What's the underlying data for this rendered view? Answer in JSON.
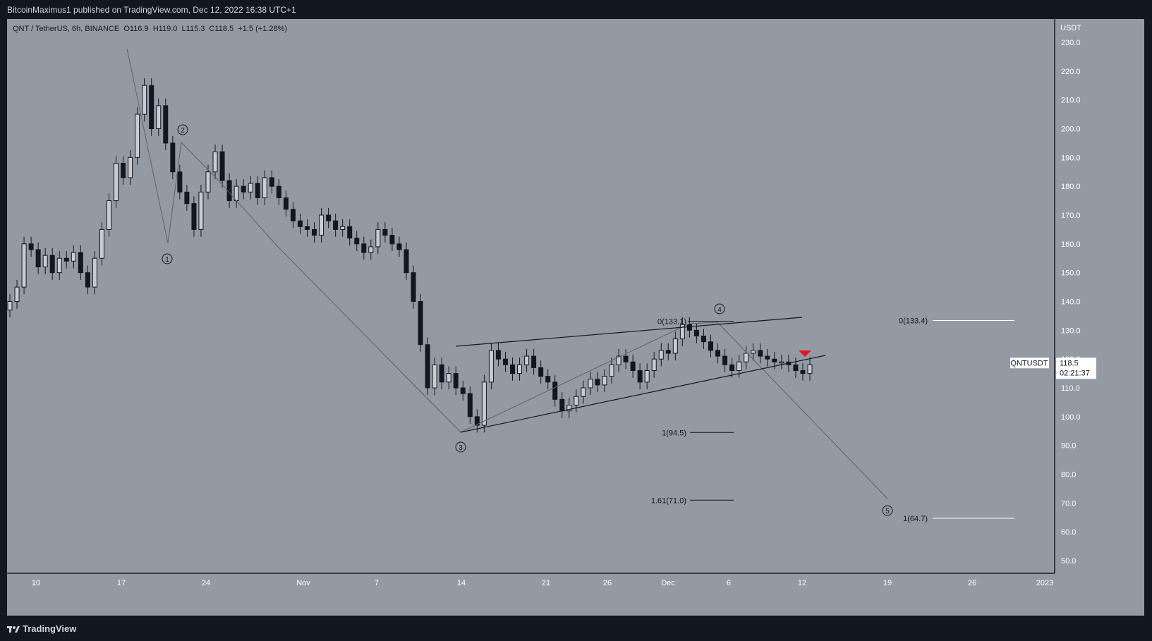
{
  "header": {
    "publisher_line": "BitcoinMaximus1 published on TradingView.com, Dec 12, 2022 16:38 UTC+1"
  },
  "legend": {
    "symbol": "QNT / TetherUS, 6h, BINANCE",
    "o_label": "O",
    "o_value": "116.9",
    "h_label": "H",
    "h_value": "119.0",
    "l_label": "L",
    "l_value": "115.3",
    "c_label": "C",
    "c_value": "118.5",
    "change": "+1.5 (+1.28%)"
  },
  "footer": {
    "brand": "TradingView"
  },
  "colors": {
    "background": "#131722",
    "panel": "#949aa4",
    "candle": "#131722",
    "line": "#131722",
    "white": "#ffffff",
    "arrow": "#e8151b"
  },
  "chart_data": {
    "type": "candlestick",
    "y_axis": {
      "unit_label": "USDT",
      "ticks": [
        50.0,
        60.0,
        70.0,
        80.0,
        90.0,
        100.0,
        110.0,
        120.0,
        130.0,
        140.0,
        150.0,
        160.0,
        170.0,
        180.0,
        190.0,
        200.0,
        210.0,
        220.0,
        230.0
      ],
      "ylim": [
        50,
        230
      ]
    },
    "x_axis": {
      "ticks": [
        "10",
        "17",
        "24",
        "Nov",
        "7",
        "14",
        "21",
        "26",
        "Dec",
        "6",
        "12",
        "19",
        "26",
        "2023"
      ]
    },
    "price_label": {
      "symbol": "QNTUSDT",
      "price": "118.5",
      "countdown": "02:21:37"
    },
    "candles_approx": [
      [
        137,
        140
      ],
      [
        140,
        145
      ],
      [
        145,
        160
      ],
      [
        160,
        158
      ],
      [
        158,
        152
      ],
      [
        152,
        156
      ],
      [
        156,
        150
      ],
      [
        150,
        155
      ],
      [
        155,
        154
      ],
      [
        154,
        157
      ],
      [
        157,
        150
      ],
      [
        150,
        145
      ],
      [
        145,
        155
      ],
      [
        155,
        165
      ],
      [
        165,
        175
      ],
      [
        175,
        188
      ],
      [
        188,
        183
      ],
      [
        183,
        190
      ],
      [
        190,
        205
      ],
      [
        205,
        215
      ],
      [
        215,
        200
      ],
      [
        200,
        208
      ],
      [
        208,
        195
      ],
      [
        195,
        185
      ],
      [
        185,
        178
      ],
      [
        178,
        174
      ],
      [
        174,
        165
      ],
      [
        165,
        178
      ],
      [
        178,
        185
      ],
      [
        185,
        192
      ],
      [
        192,
        182
      ],
      [
        182,
        175
      ],
      [
        175,
        180
      ],
      [
        180,
        178
      ],
      [
        178,
        181
      ],
      [
        181,
        176
      ],
      [
        176,
        183
      ],
      [
        183,
        180
      ],
      [
        180,
        176
      ],
      [
        176,
        172
      ],
      [
        172,
        168
      ],
      [
        168,
        166
      ],
      [
        166,
        165
      ],
      [
        165,
        163
      ],
      [
        163,
        170
      ],
      [
        170,
        168
      ],
      [
        168,
        165
      ],
      [
        165,
        166
      ],
      [
        166,
        162
      ],
      [
        162,
        160
      ],
      [
        160,
        157
      ],
      [
        157,
        159
      ],
      [
        159,
        165
      ],
      [
        165,
        163
      ],
      [
        163,
        160
      ],
      [
        160,
        158
      ],
      [
        158,
        150
      ],
      [
        150,
        140
      ],
      [
        140,
        125
      ],
      [
        125,
        110
      ],
      [
        110,
        118
      ],
      [
        118,
        112
      ],
      [
        112,
        115
      ],
      [
        115,
        110
      ],
      [
        110,
        108
      ],
      [
        108,
        100
      ],
      [
        100,
        97
      ],
      [
        97,
        112
      ],
      [
        112,
        123
      ],
      [
        123,
        120
      ],
      [
        120,
        118
      ],
      [
        118,
        115
      ],
      [
        115,
        118
      ],
      [
        118,
        121
      ],
      [
        121,
        117
      ],
      [
        117,
        114
      ],
      [
        114,
        112
      ],
      [
        112,
        106
      ],
      [
        106,
        102
      ],
      [
        102,
        104
      ],
      [
        104,
        107
      ],
      [
        107,
        110
      ],
      [
        110,
        113
      ],
      [
        113,
        111
      ],
      [
        111,
        114
      ],
      [
        114,
        118
      ],
      [
        118,
        121
      ],
      [
        121,
        119
      ],
      [
        119,
        116
      ],
      [
        116,
        112
      ],
      [
        112,
        116
      ],
      [
        116,
        120
      ],
      [
        120,
        123
      ],
      [
        123,
        122
      ],
      [
        122,
        127
      ],
      [
        127,
        132
      ],
      [
        132,
        130
      ],
      [
        130,
        128
      ],
      [
        128,
        126
      ],
      [
        126,
        123
      ],
      [
        123,
        121
      ],
      [
        121,
        118
      ],
      [
        118,
        116
      ],
      [
        116,
        119
      ],
      [
        119,
        122
      ],
      [
        122,
        123
      ],
      [
        123,
        121
      ],
      [
        121,
        120
      ],
      [
        120,
        119
      ],
      [
        119,
        119
      ],
      [
        119,
        118
      ],
      [
        118,
        116
      ],
      [
        116,
        115
      ],
      [
        115,
        118
      ]
    ],
    "wave_labels": [
      {
        "label": "1",
        "value": 152
      },
      {
        "label": "2",
        "value": 200
      },
      {
        "label": "3",
        "value": 90
      },
      {
        "label": "4",
        "value": 137
      },
      {
        "label": "5",
        "value": 67
      }
    ],
    "fib_levels": [
      {
        "label": "0(133.1)",
        "value": 133.1
      },
      {
        "label": "1(94.5)",
        "value": 94.5
      },
      {
        "label": "1.61(71.0)",
        "value": 71.0
      },
      {
        "label": "0(133.4)",
        "value": 133.4
      },
      {
        "label": "1(64.7)",
        "value": 64.7
      }
    ]
  }
}
